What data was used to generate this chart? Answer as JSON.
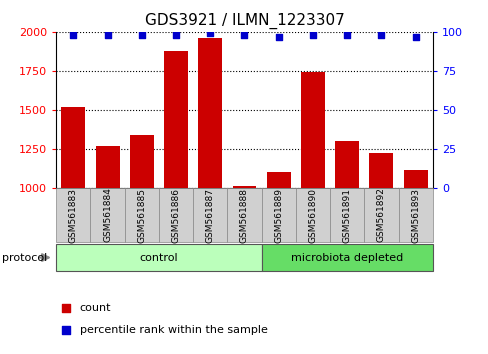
{
  "title": "GDS3921 / ILMN_1223307",
  "samples": [
    "GSM561883",
    "GSM561884",
    "GSM561885",
    "GSM561886",
    "GSM561887",
    "GSM561888",
    "GSM561889",
    "GSM561890",
    "GSM561891",
    "GSM561892",
    "GSM561893"
  ],
  "counts": [
    1520,
    1270,
    1340,
    1880,
    1960,
    1010,
    1100,
    1740,
    1300,
    1220,
    1110
  ],
  "percentile_ranks": [
    98,
    98,
    98,
    98,
    99,
    98,
    97,
    98,
    98,
    98,
    97
  ],
  "groups": [
    "control",
    "control",
    "control",
    "control",
    "control",
    "control",
    "microbiota depleted",
    "microbiota depleted",
    "microbiota depleted",
    "microbiota depleted",
    "microbiota depleted"
  ],
  "group_colors": {
    "control": "#bbffbb",
    "microbiota depleted": "#66dd66"
  },
  "bar_color": "#cc0000",
  "dot_color": "#0000cc",
  "ylim_left": [
    1000,
    2000
  ],
  "ylim_right": [
    0,
    100
  ],
  "yticks_left": [
    1000,
    1250,
    1500,
    1750,
    2000
  ],
  "yticks_right": [
    0,
    25,
    50,
    75,
    100
  ],
  "title_fontsize": 11,
  "legend_count_label": "count",
  "legend_pct_label": "percentile rank within the sample",
  "protocol_label": "protocol",
  "sample_box_color": "#d0d0d0",
  "sample_box_edge": "#888888"
}
